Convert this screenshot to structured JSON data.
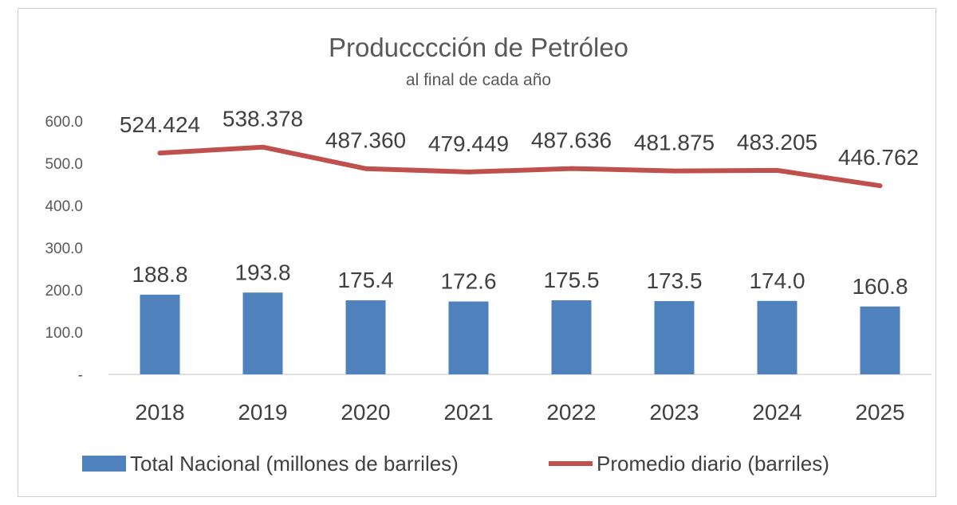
{
  "chart_data": {
    "type": "bar+line",
    "title": "Producccción de Petróleo",
    "subtitle": "al final de cada año",
    "categories": [
      "2018",
      "2019",
      "2020",
      "2021",
      "2022",
      "2023",
      "2024",
      "2025"
    ],
    "y_ticks": [
      {
        "value": 0,
        "label": "-"
      },
      {
        "value": 100,
        "label": "100.0"
      },
      {
        "value": 200,
        "label": "200.0"
      },
      {
        "value": 300,
        "label": "300.0"
      },
      {
        "value": 400,
        "label": "400.0"
      },
      {
        "value": 500,
        "label": "500.0"
      },
      {
        "value": 600,
        "label": "600.0"
      }
    ],
    "ylim": [
      0,
      600
    ],
    "grid": false,
    "legend_position": "bottom",
    "series": [
      {
        "name": "Total Nacional (millones de barriles)",
        "type": "bar",
        "color": "#4f81bd",
        "values": [
          188.8,
          193.8,
          175.4,
          172.6,
          175.5,
          173.5,
          174.0,
          160.8
        ],
        "labels": [
          "188.8",
          "193.8",
          "175.4",
          "172.6",
          "175.5",
          "173.5",
          "174.0",
          "160.8"
        ]
      },
      {
        "name": "Promedio diario (barriles)",
        "type": "line",
        "color": "#c0504d",
        "values": [
          524.424,
          538.378,
          487.36,
          479.449,
          487.636,
          481.875,
          483.205,
          446.762
        ],
        "labels": [
          "524.424",
          "538.378",
          "487.360",
          "479.449",
          "487.636",
          "481.875",
          "483.205",
          "446.762"
        ]
      }
    ]
  }
}
